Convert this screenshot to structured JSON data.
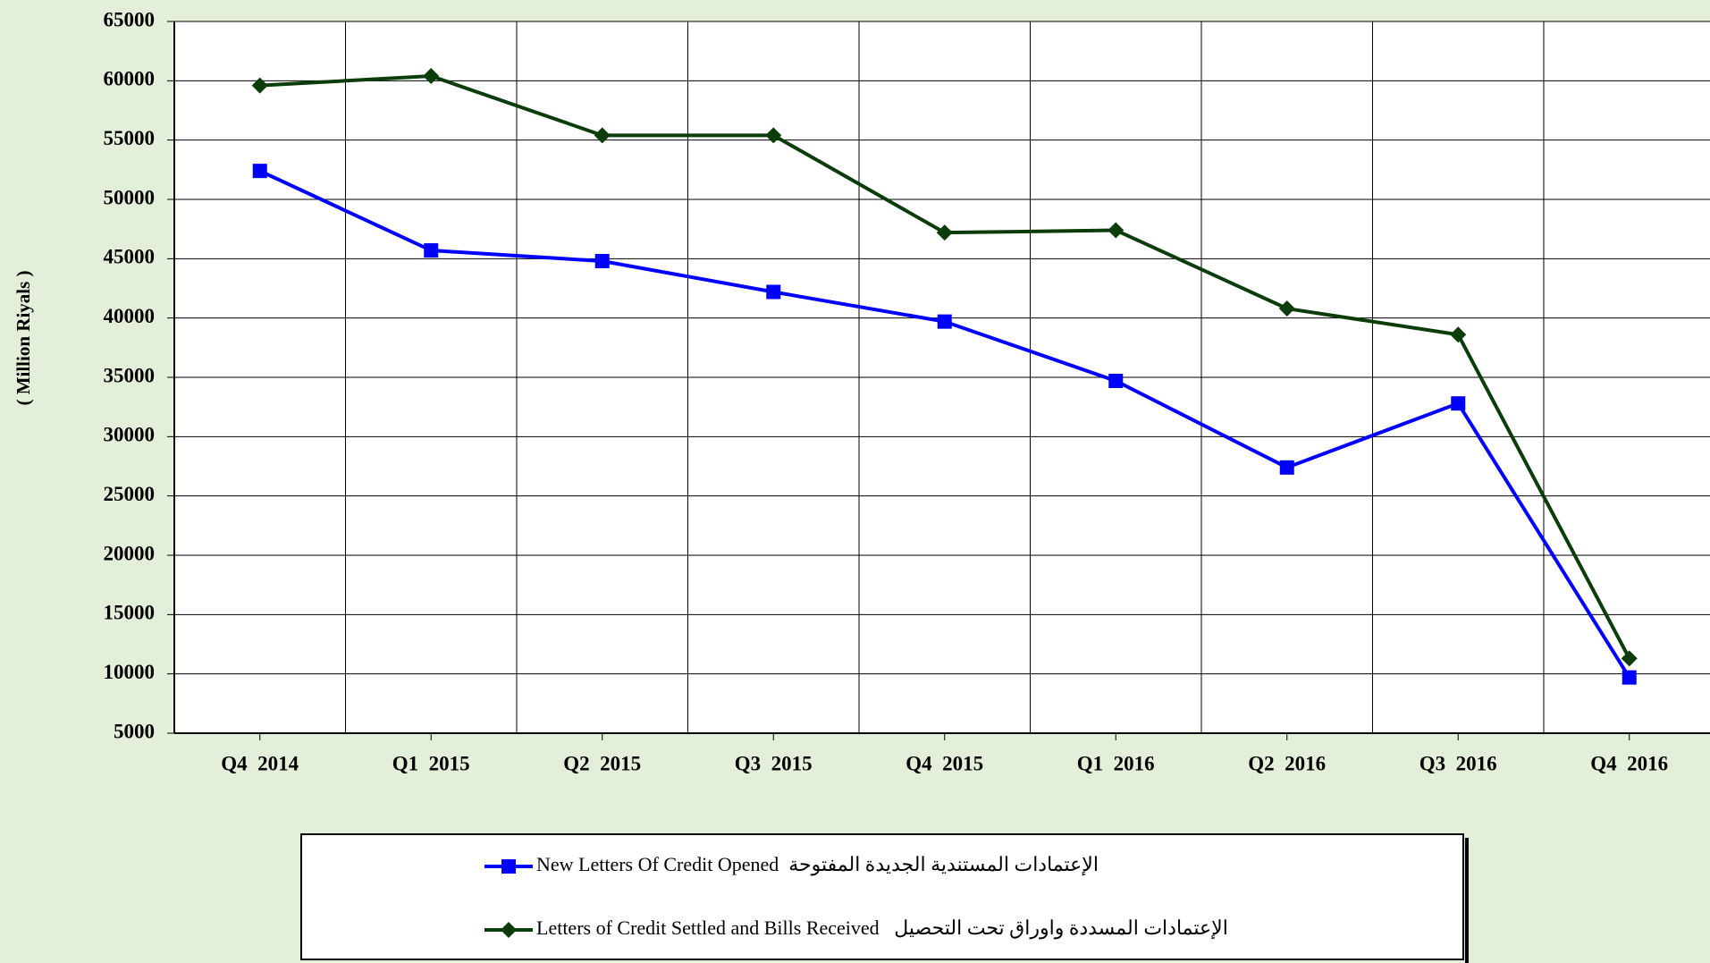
{
  "chart_data": {
    "type": "line",
    "y_label": "( Million Riyals  )",
    "categories": [
      "Q4  2014",
      "Q1  2015",
      "Q2  2015",
      "Q3  2015",
      "Q4  2015",
      "Q1  2016",
      "Q2  2016",
      "Q3  2016",
      "Q4  2016"
    ],
    "series": [
      {
        "name": "New Letters Of Credit Opened  الإعتمادات المستندية الجديدة المفتوحة",
        "color": "#0000ff",
        "marker": "square",
        "values": [
          52400,
          45700,
          44800,
          42200,
          39700,
          34700,
          27400,
          32800,
          9700
        ]
      },
      {
        "name": "Letters of Credit Settled and Bills Received   الإعتمادات المسددة واوراق تحت التحصيل",
        "color": "#0b3d0b",
        "marker": "diamond",
        "values": [
          59600,
          60400,
          55400,
          55400,
          47200,
          47400,
          40800,
          38600,
          11300
        ]
      }
    ],
    "ylim": [
      5000,
      65000
    ],
    "yticks": [
      5000,
      10000,
      15000,
      20000,
      25000,
      30000,
      35000,
      40000,
      45000,
      50000,
      55000,
      60000,
      65000
    ],
    "grid": true
  }
}
